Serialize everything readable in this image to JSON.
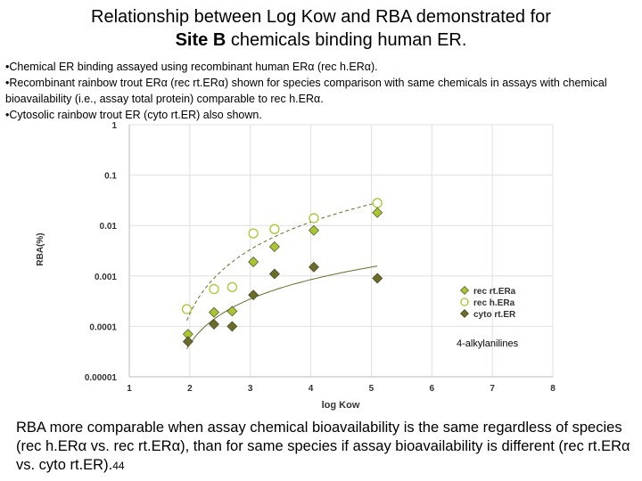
{
  "title": {
    "line1": "Relationship between Log Kow and RBA demonstrated for",
    "line2_bold": "Site B",
    "line2_rest": " chemicals binding human ER."
  },
  "bullets": [
    "•Chemical ER binding assayed using recombinant human ERα (rec h.ERα).",
    "•Recombinant rainbow trout ERα (rec rt.ERα) shown for species comparison with same chemicals in assays with chemical bioavailability (i.e., assay total protein) comparable to rec h.ERα.",
    "•Cytosolic rainbow trout ER (cyto rt.ER) also shown."
  ],
  "chart_data": {
    "type": "scatter",
    "xlabel": "log Kow",
    "ylabel": "RBA(%)",
    "xlim": [
      1,
      8
    ],
    "ylim": [
      1e-05,
      1
    ],
    "yscale": "log",
    "x_ticks": [
      "1",
      "2",
      "3",
      "4",
      "5",
      "6",
      "7",
      "8"
    ],
    "y_ticks": [
      "1",
      "0.1",
      "0.01",
      "0.001",
      "0.0001",
      "0.00001"
    ],
    "legend_position": "lower-right",
    "annotation": "4-alkylanilines",
    "series": [
      {
        "name": "rec rt.ERa",
        "marker": "diamond",
        "color": "#a8c632",
        "x": [
          1.97,
          2.4,
          2.7,
          3.05,
          3.4,
          4.05,
          5.1
        ],
        "y": [
          7e-05,
          0.00019,
          0.0002,
          0.0019,
          0.0038,
          0.008,
          0.018
        ]
      },
      {
        "name": "rec h.ERa",
        "marker": "open-circle",
        "color": "#a8c632",
        "x": [
          1.95,
          2.4,
          2.7,
          3.05,
          3.4,
          4.05,
          5.1
        ],
        "y": [
          0.00022,
          0.00055,
          0.0006,
          0.007,
          0.0085,
          0.014,
          0.028
        ]
      },
      {
        "name": "cyto rt.ER",
        "marker": "diamond",
        "color": "#6b6b2a",
        "x": [
          1.97,
          2.4,
          2.7,
          3.05,
          3.4,
          4.05,
          5.1
        ],
        "y": [
          5e-05,
          0.00011,
          0.0001,
          0.00042,
          0.0011,
          0.0015,
          0.0009
        ]
      }
    ]
  },
  "footer": {
    "text": "RBA more comparable when assay chemical bioavailability is the same regardless of species (rec h.ERα vs. rec rt.ERα), than for same species if assay bioavailability is different (rec rt.ERα vs. cyto rt.ER).",
    "slide_number": "44"
  }
}
